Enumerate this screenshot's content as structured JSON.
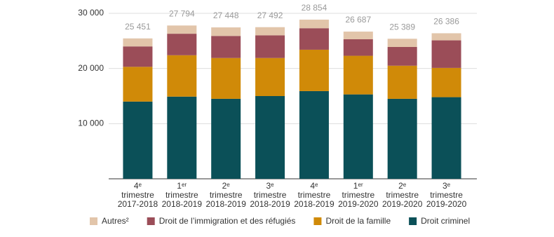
{
  "chart_data": {
    "type": "stacked-bar",
    "categories": [
      "4ᵉ trimestre 2017-2018",
      "1ᵉʳ trimestre 2018-2019",
      "2ᵉ trimestre 2018-2019",
      "3ᵉ trimestre 2018-2019",
      "4ᵉ trimestre 2018-2019",
      "1ᵉʳ trimestre 2019-2020",
      "2ᵉ trimestre 2019-2020",
      "3ᵉ trimestre 2019-2020"
    ],
    "series": [
      {
        "name": "Droit criminel",
        "color": "#0b5058",
        "values": [
          14000,
          14900,
          14500,
          15000,
          15900,
          15300,
          14500,
          14800
        ]
      },
      {
        "name": "Droit de la famille",
        "color": "#d08a08",
        "values": [
          6300,
          7500,
          7400,
          6900,
          7500,
          7000,
          6000,
          5300
        ]
      },
      {
        "name": "Droit de l’immigration et des réfugiés",
        "color": "#9b4d58",
        "values": [
          3700,
          3900,
          4000,
          4100,
          3900,
          3000,
          3400,
          5000
        ]
      },
      {
        "name": "Autres²",
        "color": "#e2c5aa",
        "values": [
          1451,
          1494,
          1548,
          1492,
          1554,
          1387,
          1489,
          1286
        ]
      }
    ],
    "totals": [
      25451,
      27794,
      27448,
      27492,
      28854,
      26687,
      25389,
      26386
    ],
    "total_labels": [
      "25 451",
      "27 794",
      "27 448",
      "27 492",
      "28 854",
      "26 687",
      "25 389",
      "26 386"
    ],
    "ylim": [
      0,
      30000
    ],
    "yticks": [
      {
        "value": 10000,
        "label": "10 000"
      },
      {
        "value": 20000,
        "label": "20 000"
      },
      {
        "value": 30000,
        "label": "30 000"
      }
    ],
    "grid": true
  }
}
